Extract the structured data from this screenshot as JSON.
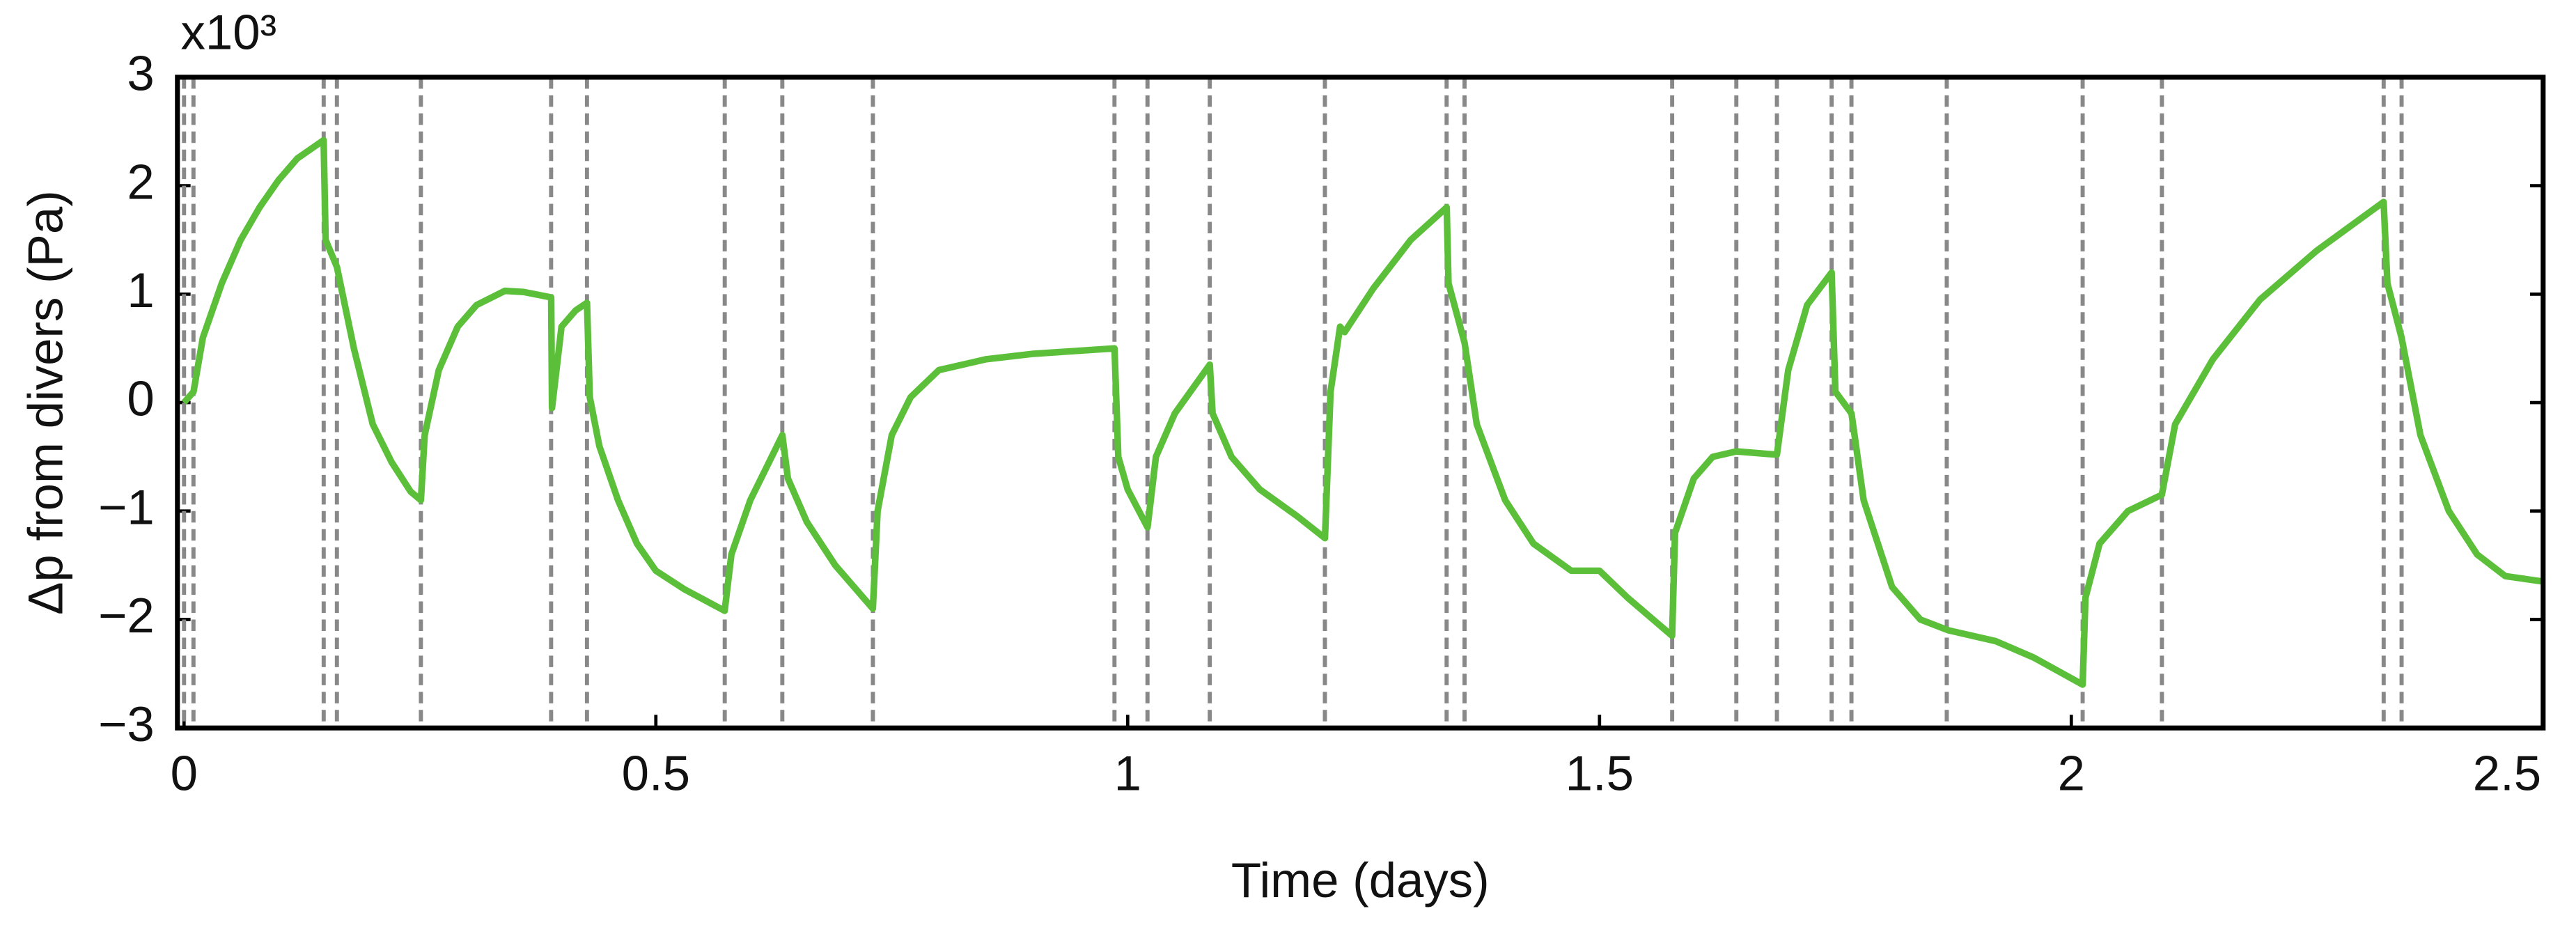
{
  "chart_data": {
    "type": "line",
    "xlabel": "Time (days)",
    "ylabel": "Δp  from divers (Pa)",
    "y_multiplier": "x10³",
    "xlim": [
      -0.007,
      2.5
    ],
    "ylim": [
      -3,
      3
    ],
    "xticks": [
      0,
      0.5,
      1,
      1.5,
      2,
      2.5
    ],
    "yticks": [
      {
        "value": -3,
        "label": "−3"
      },
      {
        "value": -2,
        "label": "−2"
      },
      {
        "value": -1,
        "label": "−1"
      },
      0,
      1,
      2,
      3
    ],
    "grid": false,
    "vline_color": "#888888",
    "vlines": [
      0,
      0.01,
      0.148,
      0.162,
      0.251,
      0.389,
      0.427,
      0.573,
      0.634,
      0.73,
      0.986,
      1.021,
      1.087,
      1.209,
      1.338,
      1.357,
      1.577,
      1.645,
      1.688,
      1.746,
      1.767,
      1.868,
      2.012,
      2.096,
      2.331,
      2.35
    ],
    "series": [
      {
        "color": "#5cbf3a",
        "x": [
          0,
          0.01,
          0.02,
          0.04,
          0.06,
          0.08,
          0.1,
          0.12,
          0.148,
          0.15,
          0.162,
          0.18,
          0.2,
          0.22,
          0.24,
          0.251,
          0.255,
          0.27,
          0.29,
          0.31,
          0.34,
          0.36,
          0.389,
          0.39,
          0.4,
          0.415,
          0.427,
          0.43,
          0.44,
          0.46,
          0.48,
          0.5,
          0.53,
          0.573,
          0.58,
          0.6,
          0.62,
          0.634,
          0.64,
          0.66,
          0.69,
          0.73,
          0.735,
          0.75,
          0.77,
          0.8,
          0.85,
          0.9,
          0.986,
          0.99,
          1.0,
          1.021,
          1.03,
          1.05,
          1.087,
          1.09,
          1.11,
          1.14,
          1.18,
          1.209,
          1.215,
          1.225,
          1.23,
          1.26,
          1.3,
          1.338,
          1.34,
          1.357,
          1.37,
          1.4,
          1.43,
          1.47,
          1.5,
          1.53,
          1.577,
          1.58,
          1.6,
          1.62,
          1.645,
          1.688,
          1.7,
          1.72,
          1.746,
          1.75,
          1.767,
          1.78,
          1.81,
          1.84,
          1.87,
          1.92,
          1.96,
          2.012,
          2.015,
          2.03,
          2.06,
          2.096,
          2.11,
          2.15,
          2.2,
          2.26,
          2.331,
          2.335,
          2.35,
          2.37,
          2.4,
          2.43,
          2.46,
          2.5
        ],
        "values": [
          0,
          0.1,
          0.6,
          1.1,
          1.5,
          1.8,
          2.05,
          2.25,
          2.42,
          1.5,
          1.25,
          0.5,
          -0.2,
          -0.55,
          -0.82,
          -0.9,
          -0.3,
          0.3,
          0.7,
          0.9,
          1.03,
          1.02,
          0.97,
          -0.05,
          0.7,
          0.85,
          0.92,
          0.05,
          -0.4,
          -0.9,
          -1.3,
          -1.55,
          -1.72,
          -1.92,
          -1.4,
          -0.9,
          -0.55,
          -0.3,
          -0.7,
          -1.1,
          -1.5,
          -1.9,
          -1.0,
          -0.3,
          0.05,
          0.3,
          0.4,
          0.45,
          0.5,
          -0.5,
          -0.8,
          -1.15,
          -0.5,
          -0.1,
          0.35,
          -0.1,
          -0.5,
          -0.8,
          -1.05,
          -1.25,
          0.1,
          0.7,
          0.65,
          1.05,
          1.5,
          1.8,
          1.1,
          0.55,
          -0.2,
          -0.9,
          -1.3,
          -1.55,
          -1.55,
          -1.8,
          -2.15,
          -1.2,
          -0.7,
          -0.5,
          -0.45,
          -0.48,
          0.3,
          0.9,
          1.2,
          0.1,
          -0.1,
          -0.9,
          -1.7,
          -2.0,
          -2.1,
          -2.2,
          -2.35,
          -2.6,
          -1.8,
          -1.3,
          -1.0,
          -0.85,
          -0.2,
          0.4,
          0.95,
          1.4,
          1.85,
          1.1,
          0.6,
          -0.3,
          -1.0,
          -1.4,
          -1.6,
          -1.65
        ]
      }
    ]
  }
}
